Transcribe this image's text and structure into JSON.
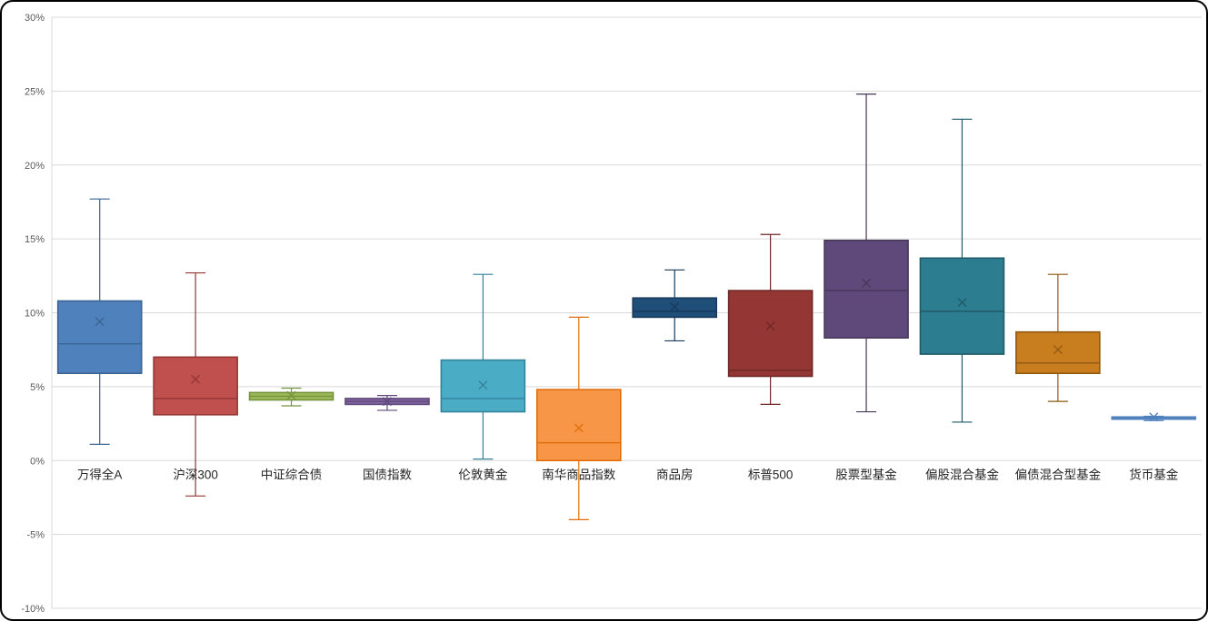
{
  "chart_data": {
    "type": "boxplot",
    "title": "",
    "xlabel": "",
    "ylabel": "",
    "ylim": [
      -10,
      30
    ],
    "grid": true,
    "legend": "none",
    "colors": {
      "gridline": "#D9D9D9",
      "axis_line": "#D9D9D9",
      "axis_text": "#595959",
      "category_text": "#262626",
      "background": "#FFFFFF"
    },
    "y_ticks": [
      {
        "value": 30,
        "label": "30%"
      },
      {
        "value": 25,
        "label": "25%"
      },
      {
        "value": 20,
        "label": "20%"
      },
      {
        "value": 15,
        "label": "15%"
      },
      {
        "value": 10,
        "label": "10%"
      },
      {
        "value": 5,
        "label": "5%"
      },
      {
        "value": 0,
        "label": "0%"
      },
      {
        "value": -5,
        "label": "-5%"
      },
      {
        "value": -10,
        "label": "-10%"
      }
    ],
    "categories": [
      "万得全A",
      "沪深300",
      "中证综合债",
      "国债指数",
      "伦敦黄金",
      "南华商品指数",
      "商品房",
      "标普500",
      "股票型基金",
      "偏股混合基金",
      "偏债混合型基金",
      "货币基金"
    ],
    "series": [
      {
        "name": "万得全A",
        "fill": "#4F81BD",
        "stroke": "#3A6491",
        "whisker_high": 17.7,
        "q3": 10.8,
        "mean": 9.4,
        "median": 7.9,
        "q1": 5.9,
        "whisker_low": 1.1
      },
      {
        "name": "沪深300",
        "fill": "#C0504D",
        "stroke": "#943634",
        "whisker_high": 12.7,
        "q3": 7.0,
        "mean": 5.5,
        "median": 4.2,
        "q1": 3.1,
        "whisker_low": -2.4
      },
      {
        "name": "中证综合债",
        "fill": "#9BBB59",
        "stroke": "#76923C",
        "whisker_high": 4.9,
        "q3": 4.6,
        "mean": 4.4,
        "median": 4.35,
        "q1": 4.1,
        "whisker_low": 3.7
      },
      {
        "name": "国债指数",
        "fill": "#8064A2",
        "stroke": "#5F497A",
        "whisker_high": 4.4,
        "q3": 4.2,
        "mean": 4.0,
        "median": 4.0,
        "q1": 3.8,
        "whisker_low": 3.4
      },
      {
        "name": "伦敦黄金",
        "fill": "#4BACC6",
        "stroke": "#33849B",
        "whisker_high": 12.6,
        "q3": 6.8,
        "mean": 5.1,
        "median": 4.2,
        "q1": 3.3,
        "whisker_low": 0.1
      },
      {
        "name": "南华商品指数",
        "fill": "#F79646",
        "stroke": "#E36C0A",
        "whisker_high": 9.7,
        "q3": 4.8,
        "mean": 2.2,
        "median": 1.2,
        "q1": 0.0,
        "whisker_low": -4.0
      },
      {
        "name": "商品房",
        "fill": "#1F4E79",
        "stroke": "#16395C",
        "whisker_high": 12.9,
        "q3": 11.0,
        "mean": 10.4,
        "median": 10.1,
        "q1": 9.7,
        "whisker_low": 8.1
      },
      {
        "name": "标普500",
        "fill": "#943634",
        "stroke": "#6E2826",
        "whisker_high": 15.3,
        "q3": 11.5,
        "mean": 9.1,
        "median": 6.1,
        "q1": 5.7,
        "whisker_low": 3.8
      },
      {
        "name": "股票型基金",
        "fill": "#5F497A",
        "stroke": "#473758",
        "whisker_high": 24.8,
        "q3": 14.9,
        "mean": 12.0,
        "median": 11.5,
        "q1": 8.3,
        "whisker_low": 3.3
      },
      {
        "name": "偏股混合基金",
        "fill": "#2D7D91",
        "stroke": "#1F5A68",
        "whisker_high": 23.1,
        "q3": 13.7,
        "mean": 10.7,
        "median": 10.1,
        "q1": 7.2,
        "whisker_low": 2.6
      },
      {
        "name": "偏债混合型基金",
        "fill": "#C87D1E",
        "stroke": "#8F5911",
        "whisker_high": 12.6,
        "q3": 8.7,
        "mean": 7.5,
        "median": 6.6,
        "q1": 5.9,
        "whisker_low": 4.0
      },
      {
        "name": "货币基金",
        "fill": "#74A2D4",
        "stroke": "#4F81BD",
        "whisker_high": 3.0,
        "q3": 2.95,
        "mean": 2.95,
        "median": 2.85,
        "q1": 2.8,
        "whisker_low": 2.7
      }
    ]
  }
}
